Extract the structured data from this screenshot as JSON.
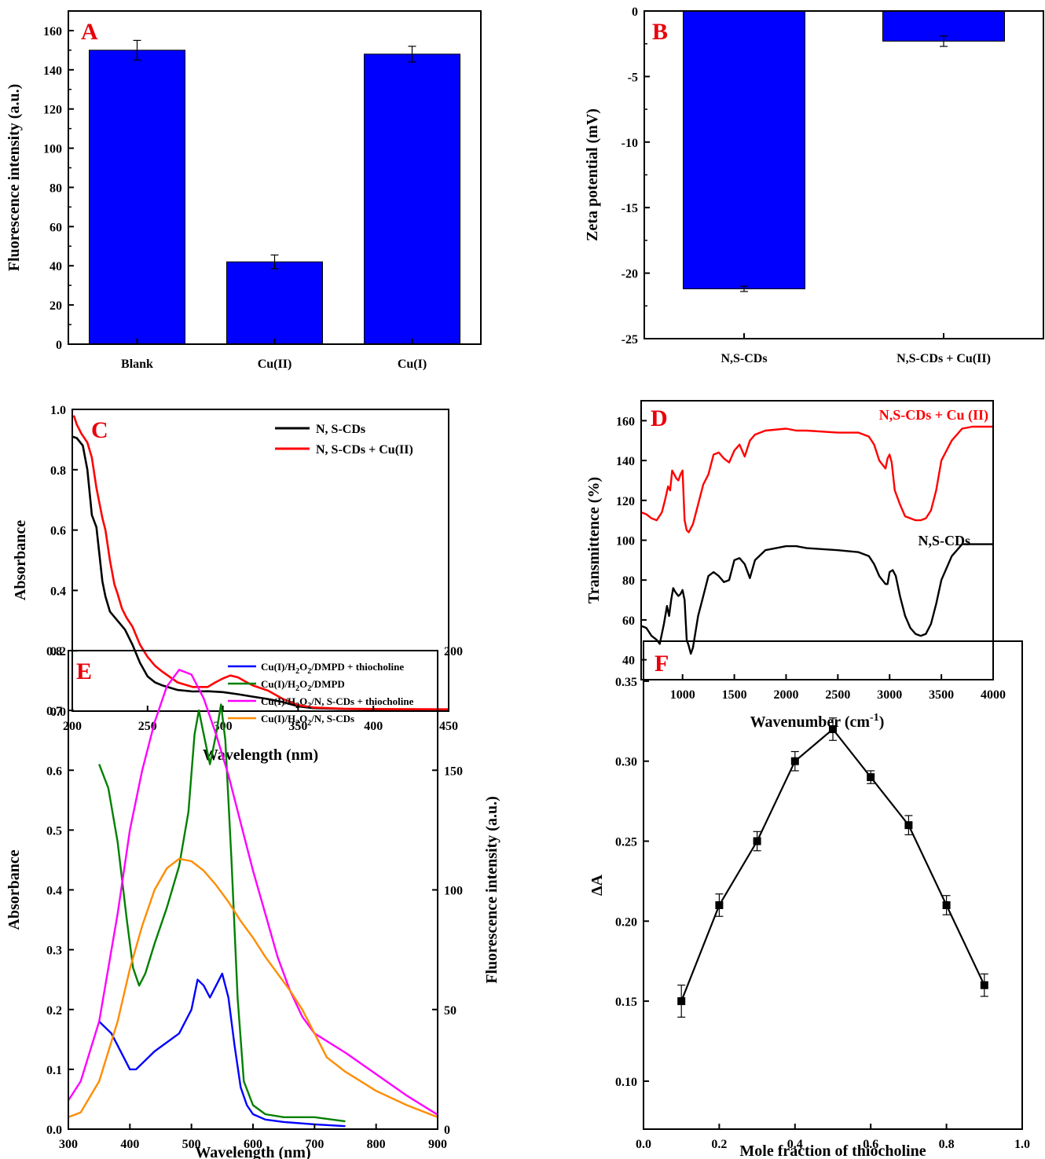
{
  "colors": {
    "bar": "#0000ff",
    "black": "#000000",
    "red": "#ff0000",
    "blue": "#0000ff",
    "green": "#008000",
    "magenta": "#ff00ff",
    "orange": "#ff8c00",
    "label": "#e8000b"
  },
  "chart_data": [
    {
      "id": "A",
      "panel_label": "A",
      "type": "bar",
      "categories": [
        "Blank",
        "Cu(II)",
        "Cu(I)"
      ],
      "values": [
        150,
        42,
        148
      ],
      "errors": [
        5,
        3.5,
        4
      ],
      "ylabel": "Fluorescence intensity (a.u.)",
      "xlabel": "",
      "ylim": [
        0,
        170
      ],
      "yticks": [
        0,
        20,
        40,
        60,
        80,
        100,
        120,
        140,
        160
      ]
    },
    {
      "id": "B",
      "panel_label": "B",
      "type": "bar",
      "categories": [
        "N,S-CDs",
        "N,S-CDs + Cu(II)"
      ],
      "values": [
        -21.2,
        -2.3
      ],
      "errors": [
        0.2,
        0.4
      ],
      "ylabel": "Zeta potential (mV)",
      "xlabel": "",
      "ylim": [
        -25,
        0
      ],
      "yticks": [
        -25,
        -20,
        -15,
        -10,
        -5,
        0
      ]
    },
    {
      "id": "C",
      "panel_label": "C",
      "type": "line",
      "xlabel": "Wavelength (nm)",
      "ylabel": "Absorbance",
      "xlim": [
        200,
        450
      ],
      "ylim": [
        0,
        1.0
      ],
      "xticks": [
        200,
        250,
        300,
        350,
        400,
        450
      ],
      "yticks": [
        0.0,
        0.2,
        0.4,
        0.6,
        0.8,
        1.0
      ],
      "legend_position": "top-right",
      "series": [
        {
          "name": "N, S-CDs",
          "color": "#000000",
          "x": [
            200,
            203,
            207,
            210,
            213,
            216,
            218,
            220,
            222,
            225,
            230,
            235,
            240,
            245,
            250,
            255,
            260,
            270,
            280,
            290,
            300,
            310,
            320,
            330,
            340,
            350,
            360,
            380,
            400,
            450
          ],
          "y": [
            0.91,
            0.905,
            0.88,
            0.8,
            0.65,
            0.61,
            0.52,
            0.43,
            0.38,
            0.33,
            0.3,
            0.27,
            0.22,
            0.16,
            0.115,
            0.095,
            0.085,
            0.07,
            0.065,
            0.066,
            0.063,
            0.056,
            0.048,
            0.04,
            0.03,
            0.016,
            0.01,
            0.007,
            0.006,
            0.005
          ]
        },
        {
          "name": "N, S-CDs + Cu(II)",
          "color": "#ff0000",
          "x": [
            201,
            203,
            206,
            210,
            213,
            216,
            218,
            220,
            222,
            225,
            228,
            230,
            233,
            236,
            240,
            245,
            250,
            255,
            260,
            270,
            280,
            290,
            295,
            300,
            305,
            310,
            315,
            320,
            330,
            340,
            350,
            360,
            380,
            400,
            450
          ],
          "y": [
            0.98,
            0.95,
            0.92,
            0.89,
            0.84,
            0.74,
            0.69,
            0.64,
            0.6,
            0.5,
            0.42,
            0.39,
            0.34,
            0.31,
            0.28,
            0.22,
            0.18,
            0.15,
            0.13,
            0.095,
            0.08,
            0.08,
            0.095,
            0.108,
            0.118,
            0.112,
            0.098,
            0.085,
            0.068,
            0.04,
            0.02,
            0.012,
            0.008,
            0.007,
            0.006
          ]
        }
      ]
    },
    {
      "id": "D",
      "panel_label": "D",
      "type": "line",
      "xlabel": "Wavenumber (cm",
      "xlabel_sup": "-1",
      "xlabel_end": ")",
      "ylabel": "Transmittence (%)",
      "xlim": [
        600,
        4000
      ],
      "ylim": [
        30,
        170
      ],
      "xticks": [
        1000,
        1500,
        2000,
        2500,
        3000,
        3500,
        4000
      ],
      "yticks": [
        40,
        60,
        80,
        100,
        120,
        140,
        160
      ],
      "series": [
        {
          "name": "N,S-CDs + Cu (II)",
          "color": "#ff0000",
          "x": [
            600,
            650,
            700,
            750,
            800,
            830,
            860,
            880,
            900,
            920,
            940,
            960,
            980,
            1000,
            1020,
            1040,
            1060,
            1080,
            1100,
            1150,
            1200,
            1250,
            1300,
            1350,
            1400,
            1450,
            1500,
            1550,
            1600,
            1650,
            1700,
            1800,
            2000,
            2100,
            2200,
            2500,
            2700,
            2800,
            2850,
            2900,
            2930,
            2960,
            2980,
            3000,
            3020,
            3050,
            3100,
            3150,
            3200,
            3250,
            3300,
            3350,
            3400,
            3450,
            3500,
            3600,
            3700,
            3800,
            3900,
            4000
          ],
          "y": [
            114,
            113,
            111,
            110,
            114,
            120,
            127,
            125,
            135,
            133,
            131,
            130,
            133,
            135,
            110,
            105,
            104,
            106,
            108,
            118,
            128,
            133,
            143,
            144,
            141,
            139,
            145,
            148,
            142,
            150,
            153,
            155,
            156,
            155,
            155,
            154,
            154,
            152,
            148,
            140,
            138,
            136,
            141,
            143,
            139,
            125,
            118,
            112,
            111,
            110,
            110,
            111,
            115,
            125,
            140,
            150,
            156,
            157,
            157,
            157
          ]
        },
        {
          "name": "N,S-CDs",
          "color": "#000000",
          "x": [
            600,
            650,
            700,
            750,
            780,
            820,
            850,
            870,
            890,
            910,
            930,
            960,
            980,
            1000,
            1020,
            1040,
            1060,
            1080,
            1100,
            1150,
            1200,
            1250,
            1300,
            1350,
            1400,
            1450,
            1500,
            1550,
            1600,
            1650,
            1700,
            1800,
            2000,
            2100,
            2200,
            2500,
            2700,
            2800,
            2850,
            2900,
            2930,
            2960,
            2980,
            3000,
            3030,
            3060,
            3100,
            3150,
            3200,
            3250,
            3300,
            3350,
            3400,
            3450,
            3500,
            3600,
            3700,
            3750,
            3800,
            4000
          ],
          "y": [
            57,
            56,
            52,
            50,
            48,
            58,
            67,
            62,
            70,
            76,
            74,
            72,
            73,
            75,
            70,
            50,
            47,
            43,
            46,
            62,
            72,
            82,
            84,
            82,
            79,
            80,
            90,
            91,
            88,
            81,
            90,
            95,
            97,
            97,
            96,
            95,
            94,
            92,
            88,
            82,
            80,
            78,
            78,
            84,
            85,
            82,
            72,
            62,
            56,
            53,
            52,
            53,
            58,
            68,
            80,
            92,
            98,
            98,
            98,
            98
          ]
        }
      ],
      "annotations": [
        {
          "text": "N,S-CDs + Cu (II)",
          "color": "#ff0000"
        },
        {
          "text": "N,S-CDs",
          "color": "#000000"
        }
      ]
    },
    {
      "id": "E",
      "panel_label": "E",
      "type": "line",
      "xlabel": "Wavelength (nm)",
      "ylabel": "Absorbance",
      "y2label": "Fluorescence intensity (a.u.)",
      "xlim": [
        300,
        900
      ],
      "ylim": [
        0,
        0.8
      ],
      "y2lim": [
        0,
        200
      ],
      "xticks": [
        300,
        400,
        500,
        600,
        700,
        800,
        900
      ],
      "yticks": [
        0.0,
        0.1,
        0.2,
        0.3,
        0.4,
        0.5,
        0.6,
        0.7,
        0.8
      ],
      "y2ticks": [
        0,
        50,
        100,
        150,
        200
      ],
      "legend_position": "top-right",
      "series": [
        {
          "name": "Cu(I)/H2O2/DMPD + thiocholine",
          "color": "#0000ff",
          "axis": "left",
          "x": [
            350,
            370,
            390,
            400,
            410,
            420,
            440,
            460,
            480,
            500,
            510,
            520,
            530,
            540,
            550,
            560,
            570,
            580,
            590,
            600,
            620,
            650,
            700,
            750
          ],
          "y": [
            0.18,
            0.16,
            0.12,
            0.1,
            0.1,
            0.11,
            0.13,
            0.145,
            0.16,
            0.2,
            0.25,
            0.24,
            0.22,
            0.24,
            0.26,
            0.22,
            0.14,
            0.07,
            0.04,
            0.025,
            0.016,
            0.012,
            0.008,
            0.005
          ]
        },
        {
          "name": "Cu(I)/H2O2/DMPD",
          "color": "#008000",
          "axis": "left",
          "x": [
            350,
            365,
            380,
            395,
            405,
            415,
            425,
            440,
            460,
            480,
            495,
            505,
            512,
            520,
            530,
            540,
            548,
            555,
            565,
            575,
            585,
            600,
            620,
            650,
            700,
            750
          ],
          "y": [
            0.61,
            0.57,
            0.48,
            0.35,
            0.27,
            0.24,
            0.26,
            0.31,
            0.37,
            0.44,
            0.53,
            0.66,
            0.7,
            0.66,
            0.61,
            0.66,
            0.71,
            0.65,
            0.45,
            0.22,
            0.08,
            0.04,
            0.025,
            0.02,
            0.02,
            0.013
          ]
        },
        {
          "name": "Cu(I)/H2O2/N, S-CDs + thiocholine",
          "color": "#ff00ff",
          "axis": "right",
          "x": [
            300,
            320,
            350,
            380,
            400,
            420,
            440,
            460,
            480,
            500,
            520,
            540,
            560,
            580,
            600,
            620,
            640,
            660,
            680,
            700,
            750,
            800,
            850,
            900
          ],
          "y": [
            12,
            20,
            45,
            90,
            125,
            150,
            170,
            185,
            192,
            190,
            180,
            165,
            148,
            128,
            108,
            90,
            72,
            58,
            47,
            40,
            32,
            23,
            14,
            6
          ]
        },
        {
          "name": "Cu(I)/H2O2/N, S-CDs",
          "color": "#ff8c00",
          "axis": "right",
          "x": [
            300,
            320,
            350,
            380,
            400,
            420,
            440,
            460,
            480,
            500,
            520,
            540,
            560,
            580,
            600,
            620,
            640,
            660,
            680,
            700,
            720,
            750,
            800,
            850,
            900
          ],
          "y": [
            5,
            7,
            20,
            45,
            67,
            85,
            100,
            109,
            113,
            112,
            108,
            102,
            95,
            87,
            80,
            72,
            65,
            58,
            50,
            40,
            30,
            24,
            16,
            10,
            5
          ]
        }
      ],
      "legend": [
        {
          "label": "Cu(I)/H",
          "s1": "2",
          "m": "O",
          "s2": "2",
          "end": "/DMPD + thiocholine",
          "color": "#0000ff"
        },
        {
          "label": "Cu(I)/H",
          "s1": "2",
          "m": "O",
          "s2": "2",
          "end": "/DMPD",
          "color": "#008000"
        },
        {
          "label": "Cu(I)/H",
          "s1": "2",
          "m": "O",
          "s2": "2",
          "end": "/N, S-CDs + thiocholine",
          "color": "#ff00ff"
        },
        {
          "label": "Cu(I)/H",
          "s1": "2",
          "m": "O",
          "s2": "2",
          "end": "/N, S-CDs",
          "color": "#ff8c00"
        }
      ]
    },
    {
      "id": "F",
      "panel_label": "F",
      "type": "scatter",
      "xlabel": "Mole fraction of thiocholine",
      "ylabel": "ΔA",
      "xlim": [
        0,
        1.0
      ],
      "ylim": [
        0.07,
        0.375
      ],
      "xticks": [
        0.0,
        0.2,
        0.4,
        0.6,
        0.8,
        1.0
      ],
      "yticks": [
        0.1,
        0.15,
        0.2,
        0.25,
        0.3,
        0.35
      ],
      "x": [
        0.1,
        0.2,
        0.3,
        0.4,
        0.5,
        0.6,
        0.7,
        0.8,
        0.9
      ],
      "y": [
        0.15,
        0.21,
        0.25,
        0.3,
        0.32,
        0.29,
        0.26,
        0.21,
        0.16
      ],
      "errors": [
        0.01,
        0.007,
        0.006,
        0.006,
        0.007,
        0.004,
        0.006,
        0.006,
        0.007
      ],
      "connected": true
    }
  ]
}
